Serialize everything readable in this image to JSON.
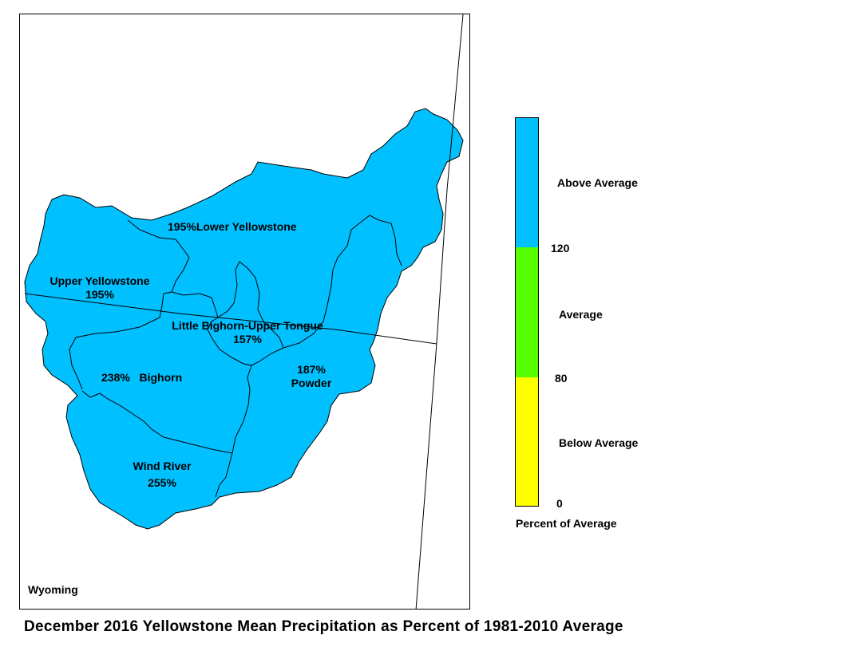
{
  "colors": {
    "above": "#00c0ff",
    "average": "#55ff00",
    "below": "#ffff00",
    "border": "#000000"
  },
  "map": {
    "state_label": "Wyoming",
    "basins": [
      {
        "id": "lower-yellowstone",
        "name": "Lower Yellowstone",
        "percent": "195%",
        "category": "above"
      },
      {
        "id": "upper-yellowstone",
        "name": "Upper Yellowstone",
        "percent": "195%",
        "category": "above"
      },
      {
        "id": "little-bighorn-upper-tongue",
        "name": "Little Bighorn-Upper Tongue",
        "percent": "157%",
        "category": "above"
      },
      {
        "id": "bighorn",
        "name": "Bighorn",
        "percent": "238%",
        "category": "above"
      },
      {
        "id": "powder",
        "name": "Powder",
        "percent": "187%",
        "category": "above"
      },
      {
        "id": "wind-river",
        "name": "Wind River",
        "percent": "255%",
        "category": "above"
      }
    ]
  },
  "legend": {
    "classes": [
      {
        "label": "Above Average",
        "min": 120,
        "max": null,
        "color": "#00c0ff"
      },
      {
        "label": "Average",
        "min": 80,
        "max": 120,
        "color": "#55ff00"
      },
      {
        "label": "Below Average",
        "min": 0,
        "max": 80,
        "color": "#ffff00"
      }
    ],
    "breaks": [
      "120",
      "80",
      "0"
    ],
    "title": "Percent of Average"
  },
  "caption": "December 2016 Yellowstone Mean Precipitation as Percent of 1981-2010 Average"
}
